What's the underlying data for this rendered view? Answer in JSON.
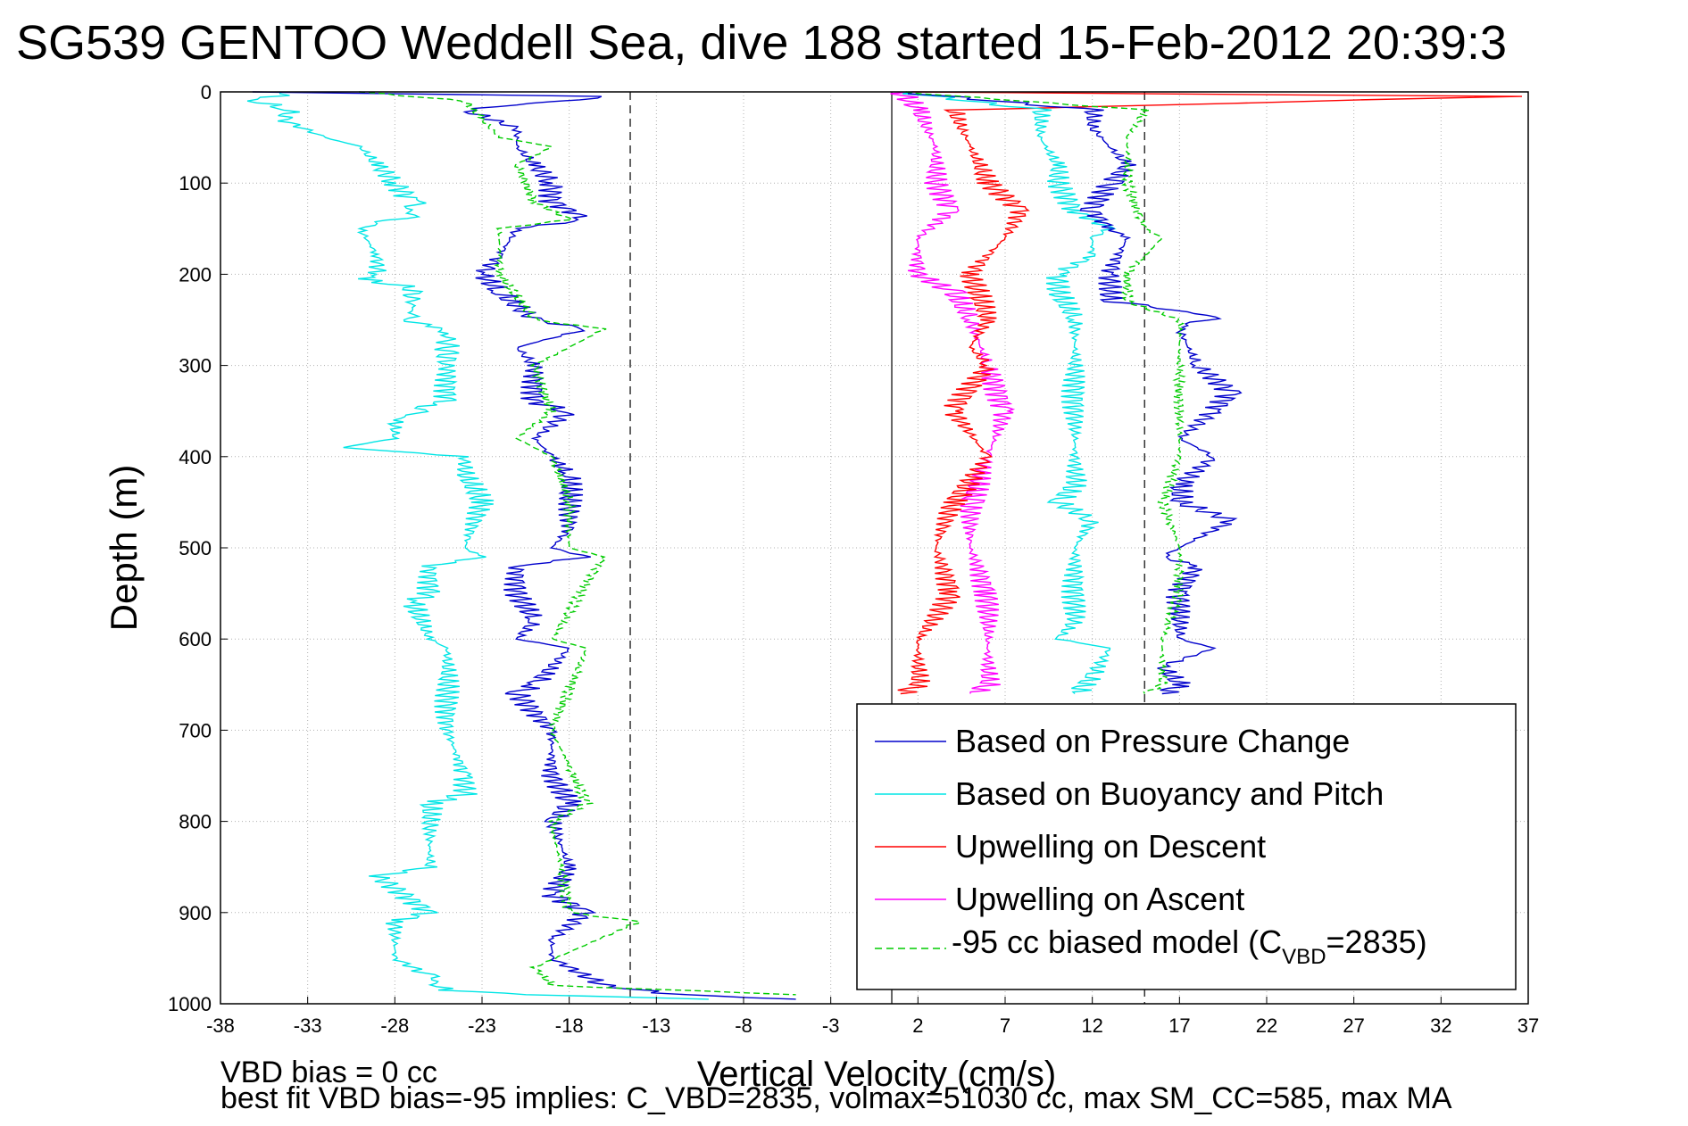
{
  "chart_data": {
    "type": "line",
    "title": "SG539 GENTOO Weddell Sea, dive 188 started 15-Feb-2012 20:39:3",
    "xlabel": "Vertical Velocity (cm/s)",
    "ylabel": "Depth (m)",
    "xlim": [
      -38,
      37
    ],
    "ylim": [
      0,
      1000
    ],
    "y_reversed": true,
    "grid": true,
    "x_ticks": [
      -38,
      -33,
      -28,
      -23,
      -18,
      -13,
      -8,
      -3,
      2,
      7,
      12,
      17,
      22,
      27,
      32,
      37
    ],
    "y_ticks": [
      0,
      100,
      200,
      300,
      400,
      500,
      600,
      700,
      800,
      900,
      1000
    ],
    "reference_lines": [
      {
        "style": "dashed",
        "x": -14.5
      },
      {
        "style": "solid",
        "x": 0.5
      },
      {
        "style": "dashed",
        "x": 15
      }
    ],
    "notes": [
      "VBD bias = 0 cc",
      "best fit VBD bias=-95 implies: C_VBD=2835, volmax=51030 cc, max SM_CC=585, max MA"
    ],
    "legend": {
      "position": "bottom-right",
      "entries": [
        {
          "label": "Based on Pressure Change",
          "color": "#0000cc",
          "dash": "solid"
        },
        {
          "label": "Based on Buoyancy and Pitch",
          "color": "#00e5e5",
          "dash": "solid"
        },
        {
          "label": "Upwelling on Descent",
          "color": "#ff0000",
          "dash": "solid"
        },
        {
          "label": "Upwelling on Ascent",
          "color": "#ff00ff",
          "dash": "solid"
        },
        {
          "label": "-95 cc biased model (C",
          "sub": "VBD",
          "suffix": "=2835)",
          "color": "#00cc00",
          "dash": "dashed"
        }
      ]
    },
    "series": [
      {
        "color": "#00e5e5",
        "depth": [
          0,
          10,
          20,
          30,
          50,
          60,
          80,
          100,
          120,
          135,
          150,
          180,
          200,
          205,
          215,
          250,
          255,
          265,
          300,
          340,
          345,
          360,
          380,
          390,
          400,
          420,
          450,
          500,
          510,
          520,
          550,
          560,
          600,
          610,
          650,
          700,
          750,
          770,
          780,
          800,
          850,
          860,
          900,
          910,
          950,
          970,
          985,
          990,
          995
        ],
        "x": [
          -34,
          -36,
          -34,
          -34.5,
          -32,
          -30,
          -29,
          -28,
          -27,
          -27,
          -30,
          -29,
          -29,
          -30,
          -27,
          -27,
          -26,
          -25,
          -25,
          -25,
          -26,
          -28,
          -28,
          -31,
          -24,
          -24,
          -23,
          -24,
          -23,
          -26,
          -26,
          -27,
          -26,
          -25,
          -25,
          -25,
          -24,
          -24,
          -26,
          -26,
          -26,
          -29,
          -26,
          -28,
          -28,
          -26,
          -25,
          -20,
          -10
        ]
      },
      {
        "color": "#0000cc",
        "depth": [
          0,
          5,
          20,
          40,
          60,
          80,
          100,
          120,
          140,
          150,
          180,
          200,
          220,
          250,
          260,
          280,
          300,
          340,
          350,
          380,
          400,
          420,
          450,
          480,
          500,
          510,
          520,
          550,
          580,
          600,
          610,
          650,
          660,
          700,
          750,
          780,
          800,
          850,
          880,
          900,
          930,
          950,
          980,
          990,
          995
        ],
        "x": [
          -36,
          -16,
          -24,
          -21,
          -21,
          -20,
          -19,
          -19,
          -17,
          -21,
          -22,
          -23,
          -22,
          -20,
          -17,
          -21,
          -20,
          -20,
          -18,
          -20,
          -19,
          -18,
          -18,
          -18,
          -19,
          -17,
          -21,
          -21,
          -20,
          -21,
          -18,
          -20,
          -21,
          -19,
          -19,
          -18,
          -19,
          -18,
          -19,
          -17,
          -19,
          -19,
          -16,
          -12,
          -5
        ]
      },
      {
        "color": "#00cc00",
        "dash": "dashed",
        "depth": [
          0,
          10,
          30,
          50,
          60,
          80,
          120,
          140,
          150,
          200,
          250,
          260,
          300,
          350,
          380,
          400,
          450,
          500,
          510,
          600,
          610,
          700,
          780,
          800,
          900,
          910,
          960,
          980,
          990
        ],
        "x": [
          -30,
          -24,
          -23,
          -22,
          -19,
          -21,
          -20,
          -18,
          -22,
          -22,
          -20,
          -16,
          -20,
          -19,
          -21,
          -19,
          -18,
          -18,
          -16,
          -19,
          -17,
          -19,
          -17,
          -19,
          -18,
          -14,
          -20,
          -19,
          -5
        ]
      },
      {
        "color": "#ff00ff",
        "depth": [
          0,
          20,
          60,
          100,
          130,
          160,
          200,
          220,
          250,
          300,
          350,
          400,
          450,
          500,
          550,
          600,
          650,
          660
        ],
        "x": [
          1,
          2,
          3,
          3,
          4,
          2,
          2,
          4,
          5,
          6,
          7,
          6,
          5,
          5,
          6,
          6,
          6,
          5
        ]
      },
      {
        "color": "#ff0000",
        "depth": [
          0,
          5,
          20,
          60,
          100,
          130,
          160,
          200,
          250,
          280,
          300,
          350,
          400,
          450,
          500,
          550,
          600,
          650,
          660
        ],
        "x": [
          1,
          36,
          4,
          5,
          6,
          8,
          7,
          5,
          6,
          5,
          6,
          4,
          6,
          4,
          3,
          4,
          2,
          2,
          1
        ]
      },
      {
        "color": "#00e5e5",
        "depth": [
          0,
          20,
          50,
          80,
          100,
          130,
          150,
          160,
          180,
          200,
          220,
          250,
          300,
          350,
          400,
          430,
          450,
          470,
          500,
          550,
          580,
          600,
          610,
          640,
          660
        ],
        "x": [
          1,
          9,
          9,
          10,
          10,
          11,
          13,
          12,
          12,
          10,
          10,
          11,
          11,
          11,
          11,
          11,
          10,
          12,
          11,
          11,
          11,
          10,
          13,
          12,
          11
        ]
      },
      {
        "color": "#0000cc",
        "depth": [
          0,
          20,
          40,
          60,
          80,
          100,
          130,
          150,
          160,
          200,
          230,
          245,
          260,
          300,
          330,
          350,
          380,
          400,
          430,
          450,
          470,
          500,
          510,
          520,
          550,
          600,
          610,
          630,
          650,
          660
        ],
        "x": [
          1,
          12,
          12,
          13,
          14,
          13,
          12,
          13,
          14,
          13,
          13,
          19,
          17,
          18,
          20,
          19,
          17,
          19,
          17,
          17,
          20,
          17,
          16,
          18,
          17,
          17,
          19,
          16,
          17,
          16
        ]
      },
      {
        "color": "#00cc00",
        "dash": "dashed",
        "depth": [
          0,
          20,
          50,
          100,
          150,
          160,
          200,
          230,
          250,
          300,
          350,
          400,
          450,
          500,
          550,
          600,
          650,
          660
        ],
        "x": [
          1,
          15,
          14,
          14,
          15,
          16,
          14,
          14,
          17,
          17,
          17,
          17,
          16,
          17,
          17,
          16,
          16,
          15
        ]
      }
    ]
  }
}
